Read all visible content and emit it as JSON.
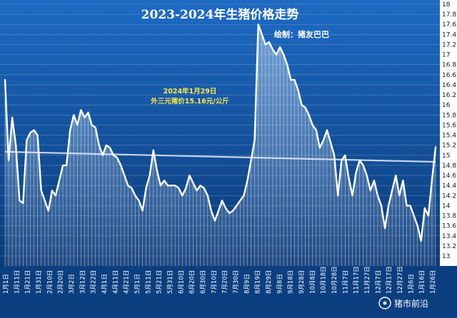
{
  "chart_data": {
    "type": "area",
    "title": "2023-2024年生猪价格走势",
    "credit": "绘制：猪友巴巴",
    "annotation": [
      "2024年1月29日",
      "外三元猪价15.16元/公斤"
    ],
    "watermark": "猪市前沿",
    "ylim": [
      13,
      18
    ],
    "yticks": [
      18,
      17.8,
      17.6,
      17.4,
      17.2,
      17,
      16.8,
      16.6,
      16.4,
      16.2,
      16,
      15.8,
      15.6,
      15.4,
      15.2,
      15,
      14.8,
      14.6,
      14.4,
      14.2,
      14,
      13.8,
      13.6,
      13.4,
      13.2,
      13
    ],
    "xticks": [
      "1月1日",
      "1月11日",
      "1月21日",
      "1月31日",
      "2月10日",
      "2月20日",
      "3月2日",
      "3月12日",
      "3月22日",
      "4月1日",
      "4月11日",
      "4月21日",
      "5月1日",
      "5月11日",
      "5月21日",
      "5月31日",
      "6月10日",
      "6月20日",
      "6月30日",
      "7月10日",
      "7月20日",
      "7月30日",
      "8月9日",
      "8月19日",
      "8月29日",
      "9月8日",
      "9月18日",
      "9月28日",
      "10月8日",
      "10月18日",
      "10月28日",
      "11月7日",
      "11月17日",
      "11月27日",
      "12月7日",
      "12月17日",
      "12月27日",
      "1月6日",
      "1月16日",
      "1月26日"
    ],
    "series": [
      {
        "values": [
          16.5,
          14.9,
          15.75,
          15.2,
          14.1,
          14.05,
          15.3,
          15.45,
          15.5,
          15.4,
          14.3,
          14.1,
          13.9,
          14.3,
          14.2,
          14.5,
          14.8,
          14.8,
          15.5,
          15.8,
          15.6,
          15.9,
          15.75,
          15.85,
          15.6,
          15.55,
          15.2,
          15.0,
          15.2,
          15.15,
          15.0,
          14.95,
          14.8,
          14.6,
          14.4,
          14.35,
          14.2,
          14.1,
          13.9,
          14.35,
          14.6,
          15.1,
          14.7,
          14.4,
          14.5,
          14.4,
          14.4,
          14.4,
          14.35,
          14.2,
          14.35,
          14.6,
          14.45,
          14.3,
          14.4,
          14.35,
          14.2,
          13.9,
          13.7,
          13.9,
          14.1,
          13.95,
          13.85,
          13.9,
          14.0,
          14.1,
          14.2,
          14.5,
          14.9,
          15.3,
          17.6,
          17.4,
          17.2,
          17.25,
          17.1,
          17.0,
          17.15,
          17.0,
          16.8,
          16.5,
          16.5,
          16.3,
          16.0,
          15.95,
          15.8,
          15.6,
          15.5,
          15.15,
          15.3,
          15.5,
          15.25,
          15.0,
          14.2,
          14.9,
          15.0,
          14.55,
          14.2,
          14.65,
          14.9,
          14.8,
          14.6,
          14.3,
          14.5,
          14.2,
          14.0,
          13.55,
          14.0,
          14.3,
          14.6,
          14.2,
          14.5,
          14.0,
          14.0,
          13.8,
          13.6,
          13.3,
          13.95,
          13.8,
          14.5,
          15.16
        ]
      }
    ],
    "trend": {
      "start": 15.07,
      "end": 14.87
    },
    "grid": true,
    "colors": {
      "background": "#0b3f80",
      "plot_top": "#1e6bc4",
      "plot_bottom": "#0a3a78",
      "line": "#ffffff",
      "trend": "#e6ecf6",
      "axis_panel": "#ffffff",
      "annotation": "#ffe84a"
    }
  }
}
